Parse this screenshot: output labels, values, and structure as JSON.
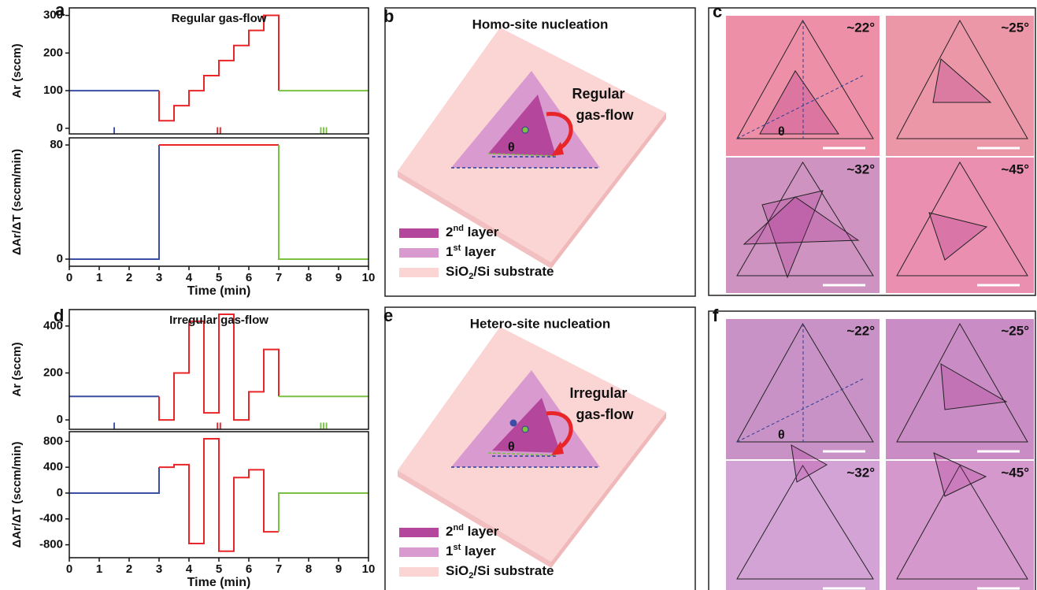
{
  "panel_labels": [
    "a",
    "b",
    "c",
    "d",
    "e",
    "f"
  ],
  "chart_data": [
    {
      "type": "line",
      "title": "Regular gas-flow",
      "ylabel": "Ar (sccm)",
      "xlim": [
        0,
        10
      ],
      "ylim": [
        -15,
        320
      ],
      "yticks": [
        0,
        100,
        200,
        300
      ],
      "series": [
        {
          "color": "#3a4ea6",
          "x": [
            0,
            3
          ],
          "values": [
            100,
            100
          ]
        },
        {
          "color": "#e8262a",
          "x": [
            3,
            3,
            3.5,
            3.5,
            4,
            4,
            4.5,
            4.5,
            5,
            5,
            5.5,
            5.5,
            6,
            6,
            6.5,
            6.5,
            7,
            7
          ],
          "values": [
            100,
            20,
            20,
            60,
            60,
            100,
            100,
            140,
            140,
            180,
            180,
            220,
            220,
            260,
            260,
            300,
            300,
            100
          ]
        },
        {
          "color": "#7ac143",
          "x": [
            7,
            10
          ],
          "values": [
            100,
            100
          ]
        }
      ],
      "markers": [
        {
          "x": 1.5,
          "label": "I",
          "color": "#3a4ea6"
        },
        {
          "x": 5,
          "label": "II",
          "color": "#e8262a"
        },
        {
          "x": 8.5,
          "label": "III",
          "color": "#7ac143"
        }
      ]
    },
    {
      "type": "line",
      "ylabel": "ΔAr/ΔT (sccm/min)",
      "xlabel": "Time (min)",
      "xlim": [
        0,
        10
      ],
      "xticks": [
        0,
        1,
        2,
        3,
        4,
        5,
        6,
        7,
        8,
        9,
        10
      ],
      "ylim": [
        -5,
        85
      ],
      "yticks": [
        0,
        80
      ],
      "series": [
        {
          "color": "#3a4ea6",
          "x": [
            0,
            3,
            3
          ],
          "values": [
            0,
            0,
            80
          ]
        },
        {
          "color": "#e8262a",
          "x": [
            3,
            7
          ],
          "values": [
            80,
            80
          ]
        },
        {
          "color": "#7ac143",
          "x": [
            7,
            7,
            10
          ],
          "values": [
            80,
            0,
            0
          ]
        }
      ]
    },
    {
      "type": "line",
      "title": "Irregular gas-flow",
      "ylabel": "Ar (sccm)",
      "xlim": [
        0,
        10
      ],
      "ylim": [
        -40,
        470
      ],
      "yticks": [
        0,
        200,
        400
      ],
      "series": [
        {
          "color": "#3a4ea6",
          "x": [
            0,
            3
          ],
          "values": [
            100,
            100
          ]
        },
        {
          "color": "#e8262a",
          "x": [
            3,
            3,
            3.5,
            3.5,
            4,
            4,
            4.5,
            4.5,
            5,
            5,
            5.5,
            5.5,
            6,
            6,
            6.5,
            6.5,
            7,
            7
          ],
          "values": [
            100,
            0,
            0,
            200,
            200,
            420,
            420,
            30,
            30,
            450,
            450,
            0,
            0,
            120,
            120,
            300,
            300,
            100
          ]
        },
        {
          "color": "#7ac143",
          "x": [
            7,
            10
          ],
          "values": [
            100,
            100
          ]
        }
      ],
      "markers": [
        {
          "x": 1.5,
          "label": "I",
          "color": "#3a4ea6"
        },
        {
          "x": 5,
          "label": "II",
          "color": "#e8262a"
        },
        {
          "x": 8.5,
          "label": "III",
          "color": "#7ac143"
        }
      ]
    },
    {
      "type": "line",
      "ylabel": "ΔAr/ΔT (sccm/min)",
      "xlabel": "Time (min)",
      "xlim": [
        0,
        10
      ],
      "xticks": [
        0,
        1,
        2,
        3,
        4,
        5,
        6,
        7,
        8,
        9,
        10
      ],
      "ylim": [
        -1000,
        950
      ],
      "yticks": [
        -800,
        -400,
        0,
        400,
        800
      ],
      "series": [
        {
          "color": "#3a4ea6",
          "x": [
            0,
            3,
            3
          ],
          "values": [
            0,
            0,
            400
          ]
        },
        {
          "color": "#e8262a",
          "x": [
            3,
            3.5,
            3.5,
            4,
            4,
            4.5,
            4.5,
            5,
            5,
            5.5,
            5.5,
            6,
            6,
            6.5,
            6.5,
            7
          ],
          "values": [
            400,
            400,
            440,
            440,
            -780,
            -780,
            840,
            840,
            -900,
            -900,
            240,
            240,
            360,
            360,
            -600,
            -600
          ]
        },
        {
          "color": "#7ac143",
          "x": [
            7,
            7,
            10
          ],
          "values": [
            -600,
            0,
            0
          ]
        }
      ]
    }
  ],
  "diagrams": [
    {
      "title": "Homo-site nucleation",
      "arrow_text": [
        "Regular",
        "gas-flow"
      ],
      "theta": "θ"
    },
    {
      "title": "Hetero-site nucleation",
      "arrow_text": [
        "Irregular",
        "gas-flow"
      ],
      "theta": "θ"
    }
  ],
  "legend": [
    {
      "text": "2",
      "sup": "nd",
      "after": " layer"
    },
    {
      "text": "1",
      "sup": "st",
      "after": " layer"
    },
    {
      "text": "SiO",
      "sub": "2",
      "after": "/Si substrate"
    }
  ],
  "micrographs": [
    {
      "labels": [
        "~22°",
        "~25°",
        "~32°",
        "~45°"
      ],
      "theta": "θ"
    },
    {
      "labels": [
        "~22°",
        "~25°",
        "~32°",
        "~45°"
      ],
      "theta": "θ"
    }
  ]
}
